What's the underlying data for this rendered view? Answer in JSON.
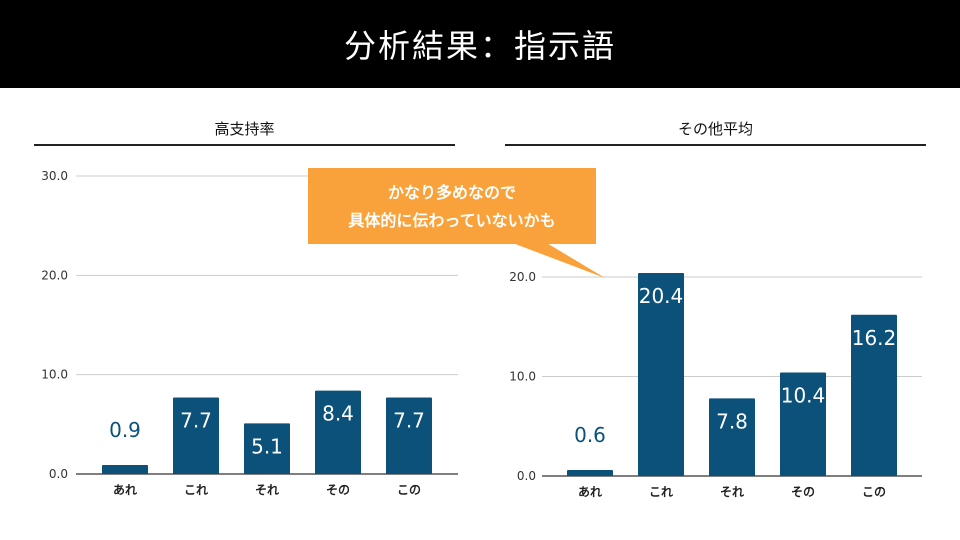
{
  "header": {
    "title": "分析結果：指示語"
  },
  "left_panel": {
    "title": "高支持率"
  },
  "right_panel": {
    "title": "その他平均"
  },
  "callout": {
    "line1": "かなり多めなので",
    "line2": "具体的に伝わっていないかも",
    "color": "#f9a13a"
  },
  "colors": {
    "bar": "#0b5179",
    "value_label_outside": "#0b5179",
    "value_label_inside": "#ffffff",
    "grid": "#cccccc"
  },
  "chart_data": [
    {
      "type": "bar",
      "title": "高支持率",
      "categories": [
        "あれ",
        "これ",
        "それ",
        "その",
        "この"
      ],
      "values": [
        0.9,
        7.7,
        5.1,
        8.4,
        7.7
      ],
      "value_labels": [
        "0.9",
        "7.7",
        "5.1",
        "8.4",
        "7.7"
      ],
      "yticks": [
        "0.0",
        "10.0",
        "20.0",
        "30.0"
      ],
      "ylim": [
        0,
        30
      ],
      "grid": true
    },
    {
      "type": "bar",
      "title": "その他平均",
      "categories": [
        "あれ",
        "これ",
        "それ",
        "その",
        "この"
      ],
      "values": [
        0.6,
        20.4,
        7.8,
        10.4,
        16.2
      ],
      "value_labels": [
        "0.6",
        "20.4",
        "7.8",
        "10.4",
        "16.2"
      ],
      "yticks": [
        "0.0",
        "10.0",
        "20.0"
      ],
      "ylim": [
        0,
        20.4
      ],
      "grid": true
    }
  ]
}
